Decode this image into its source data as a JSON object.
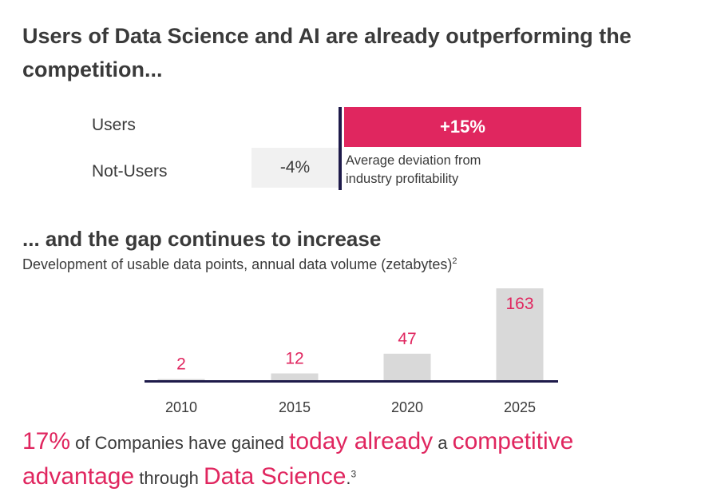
{
  "title": "Users of Data Science and AI are already outperforming the competition...",
  "comparison": {
    "users_label": "Users",
    "users_value": "+15%",
    "nonusers_label": "Not-Users",
    "nonusers_value": "-4%",
    "note": "Average deviation from industry profitability",
    "users_color": "#e0265f",
    "nonusers_color": "#f1f1f1",
    "axis_color": "#1e1a4a"
  },
  "subtitle": "... and the gap continues to increase",
  "description": "Development of usable data points, annual data volume (zetabytes)",
  "description_sup": "2",
  "chart_data": {
    "type": "bar",
    "categories": [
      "2010",
      "2015",
      "2020",
      "2025"
    ],
    "values": [
      2,
      12,
      47,
      163
    ],
    "ylim": [
      0,
      163
    ],
    "bar_color": "#d9d9d9",
    "label_color": "#e0265f",
    "axis_color": "#1e1a4a",
    "grid": false
  },
  "footer": {
    "part1": "17%",
    "part2": " of Companies have gained ",
    "part3": "today already",
    "part4": " a ",
    "part5": "competitive advantage",
    "part6": " through ",
    "part7": "Data Science",
    "part8": ".",
    "sup": "3"
  }
}
